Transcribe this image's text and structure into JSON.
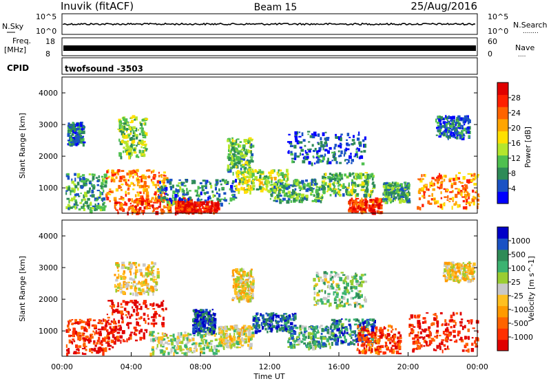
{
  "header": {
    "station": "Inuvik (fitACF)",
    "beam": "Beam 15",
    "date": "25/Aug/2016"
  },
  "noise_panel": {
    "left_label": "N.Sky",
    "left_ticks": [
      "10^5",
      "10^0"
    ],
    "right_ticks": [
      "10^5",
      "10^0"
    ],
    "right_label": "N.Search",
    "right_label_dots": "........"
  },
  "freq_panel": {
    "left_label_1": "Freq.",
    "left_label_2": "[MHz]",
    "left_ticks": [
      "18",
      "8"
    ],
    "right_ticks": [
      "60",
      "0"
    ],
    "right_label": "Nave",
    "right_label_dots": "...."
  },
  "cpid_panel": {
    "label": "CPID",
    "value": "twofsound  -3503"
  },
  "chart_data": [
    {
      "type": "heatmap",
      "name": "power",
      "ylabel": "Slant Range [km]",
      "yticks": [
        "4000",
        "3000",
        "2000",
        "1000"
      ],
      "ytick_values": [
        4000,
        3000,
        2000,
        1000
      ],
      "ylim": [
        200,
        4500
      ],
      "xlim": [
        0,
        24
      ],
      "colorbar": {
        "label": "Power [dB]",
        "tick_labels": [
          "28",
          "24",
          "20",
          "16",
          "12",
          "8",
          "4"
        ],
        "colors": [
          "#0000ff",
          "#1a52c4",
          "#2e8b57",
          "#4fc04f",
          "#b4e62d",
          "#ffe000",
          "#ffa500",
          "#ff6400",
          "#ff2000",
          "#e00000"
        ]
      },
      "blobs": [
        {
          "x0": 0.2,
          "x1": 2.5,
          "r0": 300,
          "r1": 1500,
          "level": 0.3
        },
        {
          "x0": 0.3,
          "x1": 1.2,
          "r0": 2400,
          "r1": 3100,
          "level": 0.2
        },
        {
          "x0": 2.5,
          "x1": 6.0,
          "r0": 600,
          "r1": 1600,
          "level": 0.7
        },
        {
          "x0": 3.2,
          "x1": 4.8,
          "r0": 2000,
          "r1": 3300,
          "level": 0.4
        },
        {
          "x0": 3.0,
          "x1": 7.5,
          "r0": 250,
          "r1": 700,
          "level": 0.8
        },
        {
          "x0": 5.5,
          "x1": 10.0,
          "r0": 500,
          "r1": 1300,
          "level": 0.25
        },
        {
          "x0": 6.5,
          "x1": 9.0,
          "r0": 250,
          "r1": 600,
          "level": 0.9
        },
        {
          "x0": 9.5,
          "x1": 11.0,
          "r0": 1500,
          "r1": 2600,
          "level": 0.35
        },
        {
          "x0": 10.0,
          "x1": 13.0,
          "r0": 900,
          "r1": 1600,
          "level": 0.45
        },
        {
          "x0": 12.0,
          "x1": 15.0,
          "r0": 600,
          "r1": 1300,
          "level": 0.3
        },
        {
          "x0": 13.0,
          "x1": 17.5,
          "r0": 1800,
          "r1": 2800,
          "level": 0.15
        },
        {
          "x0": 15.0,
          "x1": 18.0,
          "r0": 800,
          "r1": 1500,
          "level": 0.35
        },
        {
          "x0": 16.5,
          "x1": 18.5,
          "r0": 250,
          "r1": 700,
          "level": 0.85
        },
        {
          "x0": 18.5,
          "x1": 20.0,
          "r0": 600,
          "r1": 1200,
          "level": 0.3
        },
        {
          "x0": 20.5,
          "x1": 24.0,
          "r0": 400,
          "r1": 1500,
          "level": 0.7
        },
        {
          "x0": 21.5,
          "x1": 23.5,
          "r0": 2600,
          "r1": 3300,
          "level": 0.2
        }
      ]
    },
    {
      "type": "heatmap",
      "name": "velocity",
      "ylabel": "Slant Range [km]",
      "xlabel": "Time UT",
      "yticks": [
        "4000",
        "3000",
        "2000",
        "1000"
      ],
      "ytick_values": [
        4000,
        3000,
        2000,
        1000
      ],
      "ylim": [
        200,
        4500
      ],
      "xlim": [
        0,
        24
      ],
      "xtick_labels": [
        "00:00",
        "04:00",
        "08:00",
        "12:00",
        "16:00",
        "20:00",
        "00:00"
      ],
      "xtick_values": [
        0,
        4,
        8,
        12,
        16,
        20,
        24
      ],
      "colorbar": {
        "label": "Velocity [m s^-1]",
        "tick_labels": [
          "1000",
          "500",
          "100",
          "25",
          "-25",
          "-100",
          "-500",
          "-1000"
        ],
        "colors": [
          "#e00000",
          "#ff3000",
          "#ff6400",
          "#ff9a00",
          "#ffc020",
          "#c8c8c8",
          "#9acd32",
          "#3cb371",
          "#2e8b57",
          "#1a52c4",
          "#0000c8"
        ]
      },
      "blobs": [
        {
          "x0": 0.2,
          "x1": 3.0,
          "r0": 300,
          "r1": 1400,
          "level": 0.1
        },
        {
          "x0": 2.5,
          "x1": 6.0,
          "r0": 700,
          "r1": 2000,
          "level": 0.05
        },
        {
          "x0": 3.0,
          "x1": 5.5,
          "r0": 2200,
          "r1": 3200,
          "level": 0.45
        },
        {
          "x0": 5.0,
          "x1": 9.0,
          "r0": 300,
          "r1": 1000,
          "level": 0.55
        },
        {
          "x0": 7.5,
          "x1": 8.8,
          "r0": 1000,
          "r1": 1700,
          "level": 0.9
        },
        {
          "x0": 9.0,
          "x1": 11.0,
          "r0": 500,
          "r1": 1200,
          "level": 0.5
        },
        {
          "x0": 9.8,
          "x1": 11.0,
          "r0": 2000,
          "r1": 3000,
          "level": 0.45
        },
        {
          "x0": 11.0,
          "x1": 13.5,
          "r0": 1000,
          "r1": 1600,
          "level": 0.85
        },
        {
          "x0": 13.0,
          "x1": 15.5,
          "r0": 500,
          "r1": 1200,
          "level": 0.7
        },
        {
          "x0": 14.5,
          "x1": 17.5,
          "r0": 1800,
          "r1": 2900,
          "level": 0.6
        },
        {
          "x0": 15.5,
          "x1": 18.0,
          "r0": 600,
          "r1": 1400,
          "level": 0.8
        },
        {
          "x0": 17.0,
          "x1": 19.5,
          "r0": 300,
          "r1": 1200,
          "level": 0.15
        },
        {
          "x0": 20.0,
          "x1": 24.0,
          "r0": 400,
          "r1": 1600,
          "level": 0.1
        },
        {
          "x0": 22.0,
          "x1": 23.8,
          "r0": 2600,
          "r1": 3200,
          "level": 0.45
        }
      ]
    }
  ]
}
